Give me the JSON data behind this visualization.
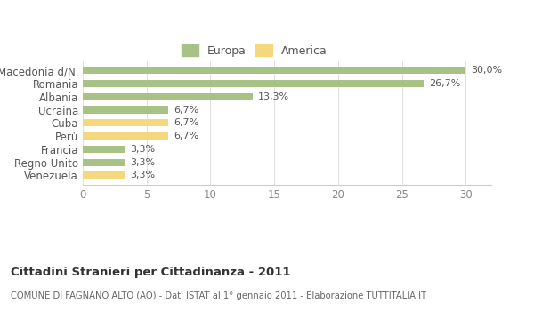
{
  "categories": [
    "Venezuela",
    "Regno Unito",
    "Francia",
    "Perù",
    "Cuba",
    "Ucraina",
    "Albania",
    "Romania",
    "Macedonia d/N."
  ],
  "values": [
    3.3,
    3.3,
    3.3,
    6.7,
    6.7,
    6.7,
    13.3,
    26.7,
    30.0
  ],
  "labels": [
    "3,3%",
    "3,3%",
    "3,3%",
    "6,7%",
    "6,7%",
    "6,7%",
    "13,3%",
    "26,7%",
    "30,0%"
  ],
  "colors": [
    "#f5d77e",
    "#a8c185",
    "#a8c185",
    "#f5d77e",
    "#f5d77e",
    "#a8c185",
    "#a8c185",
    "#a8c185",
    "#a8c185"
  ],
  "europa_color": "#a8c185",
  "america_color": "#f5d77e",
  "xlim": [
    0,
    32
  ],
  "xticks": [
    0,
    5,
    10,
    15,
    20,
    25,
    30
  ],
  "title": "Cittadini Stranieri per Cittadinanza - 2011",
  "subtitle": "COMUNE DI FAGNANO ALTO (AQ) - Dati ISTAT al 1° gennaio 2011 - Elaborazione TUTTITALIA.IT",
  "legend_europa": "Europa",
  "legend_america": "America",
  "background_color": "#ffffff",
  "bar_height": 0.55,
  "label_fontsize": 8,
  "tick_fontsize": 8.5,
  "ytick_fontsize": 8.5
}
